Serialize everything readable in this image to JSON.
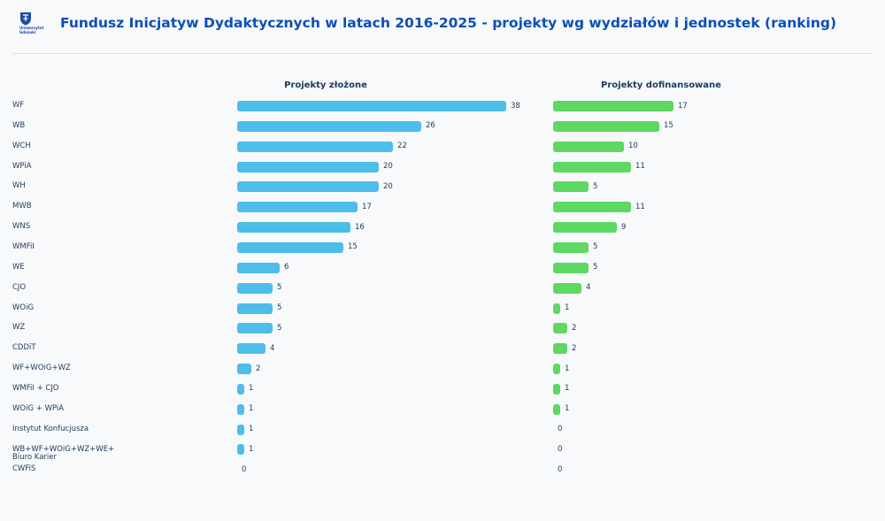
{
  "header": {
    "title": "Fundusz Inicjatyw Dydaktycznych w latach 2016-2025 - projekty wg wydziałów i jednostek (ranking)",
    "logo_text": [
      "Uniwersytet",
      "Gdański"
    ]
  },
  "colors": {
    "submitted_bar": "#4dbde9",
    "funded_bar": "#5dd862",
    "title": "#0b4fb5"
  },
  "chart_data": {
    "type": "bar",
    "orientation": "horizontal",
    "categories": [
      "WF",
      "WB",
      "WCH",
      "WPiA",
      "WH",
      "MWB",
      "WNS",
      "WMFiI",
      "WE",
      "CJO",
      "WOiG",
      "WZ",
      "CDDiT",
      "WF+WOiG+WZ",
      "WMFiI + CJO",
      "WOiG + WPiA",
      "Instytut Konfucjusza",
      "WB+WF+WOiG+WZ+WE+ Biuro Karier",
      "CWFiS"
    ],
    "series": [
      {
        "name": "Projekty złożone",
        "values": [
          38,
          26,
          22,
          20,
          20,
          17,
          16,
          15,
          6,
          5,
          5,
          5,
          4,
          2,
          1,
          1,
          1,
          1,
          0
        ]
      },
      {
        "name": "Projekty dofinansowane",
        "values": [
          17,
          15,
          10,
          11,
          5,
          11,
          9,
          5,
          5,
          4,
          1,
          2,
          2,
          1,
          1,
          1,
          0,
          0,
          0
        ]
      }
    ]
  }
}
